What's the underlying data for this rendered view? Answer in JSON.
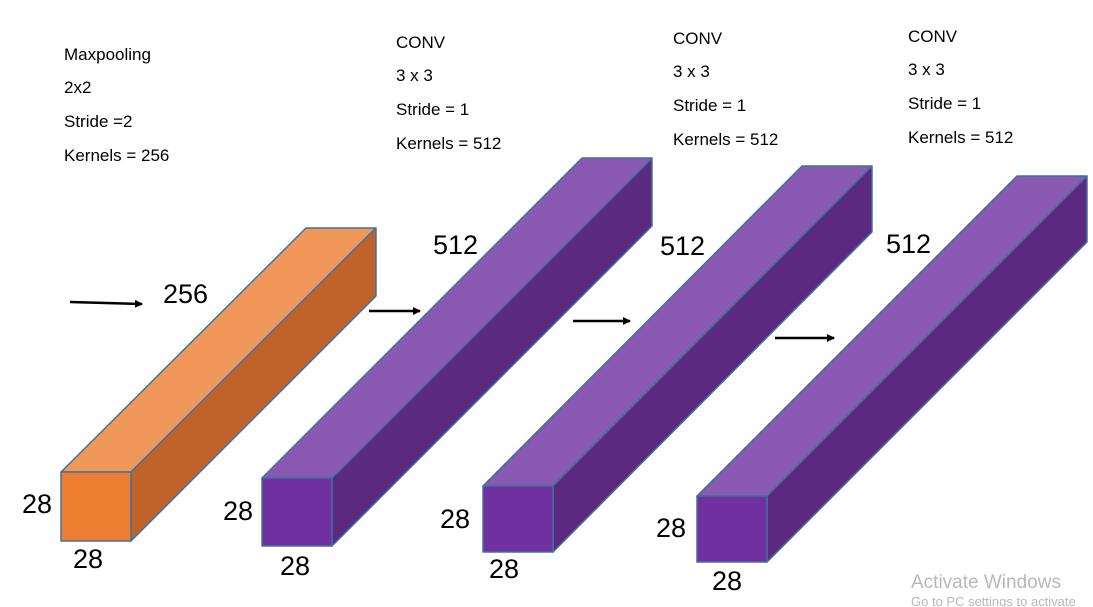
{
  "blocks": [
    {
      "lines": [
        "Maxpooling",
        "2x2",
        "Stride =2",
        "Kernels = 256"
      ],
      "depth": "256",
      "height": "28",
      "width": "28"
    },
    {
      "lines": [
        "CONV",
        "3 x 3",
        "Stride = 1",
        "Kernels = 512"
      ],
      "depth": "512",
      "height": "28",
      "width": "28"
    },
    {
      "lines": [
        "CONV",
        "3 x 3",
        "Stride = 1",
        "Kernels = 512"
      ],
      "depth": "512",
      "height": "28",
      "width": "28"
    },
    {
      "lines": [
        "CONV",
        "3 x 3",
        "Stride = 1",
        "Kernels = 512"
      ],
      "depth": "512",
      "height": "28",
      "width": "28"
    }
  ],
  "watermark": {
    "title": "Activate Windows",
    "subtitle": "Go to PC settings to activate"
  }
}
